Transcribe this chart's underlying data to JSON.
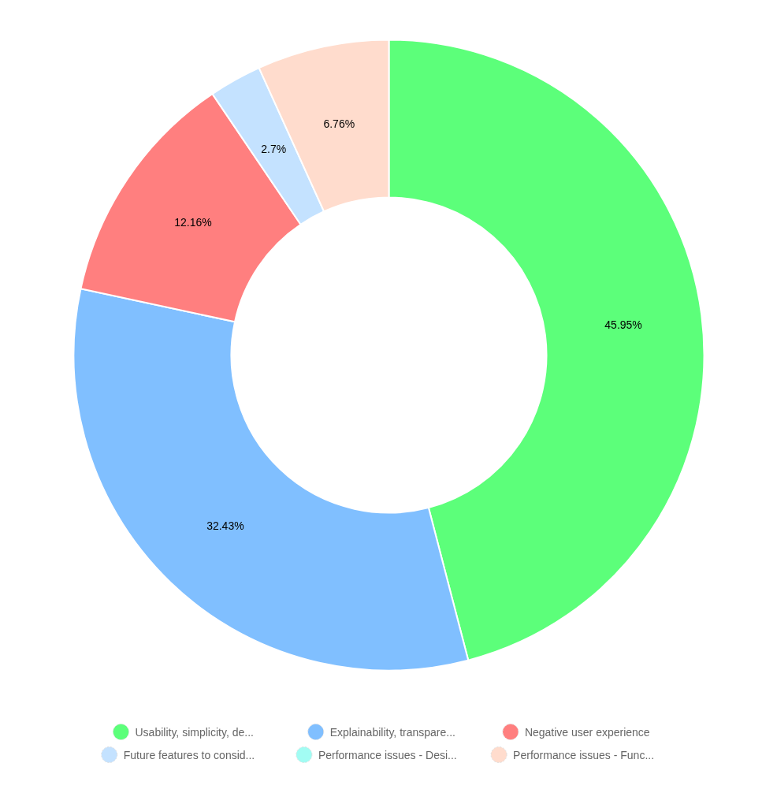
{
  "chart_data": {
    "type": "donut",
    "categories": [
      "Usability, simplicity, de...",
      "Explainability, transpare...",
      "Negative user experience",
      "Future features to consid...",
      "Performance issues - Desi...",
      "Performance issues - Func..."
    ],
    "values": [
      45.95,
      32.43,
      12.16,
      2.7,
      0,
      6.76
    ],
    "colors": [
      "#5cff7a",
      "#80bfff",
      "#ff7f7f",
      "#c4e2ff",
      "#a2fcf3",
      "#ffdccd"
    ],
    "value_labels": [
      "45.95%",
      "32.43%",
      "12.16%",
      "2.7%",
      null,
      "6.76%"
    ],
    "legend": "bottom"
  }
}
